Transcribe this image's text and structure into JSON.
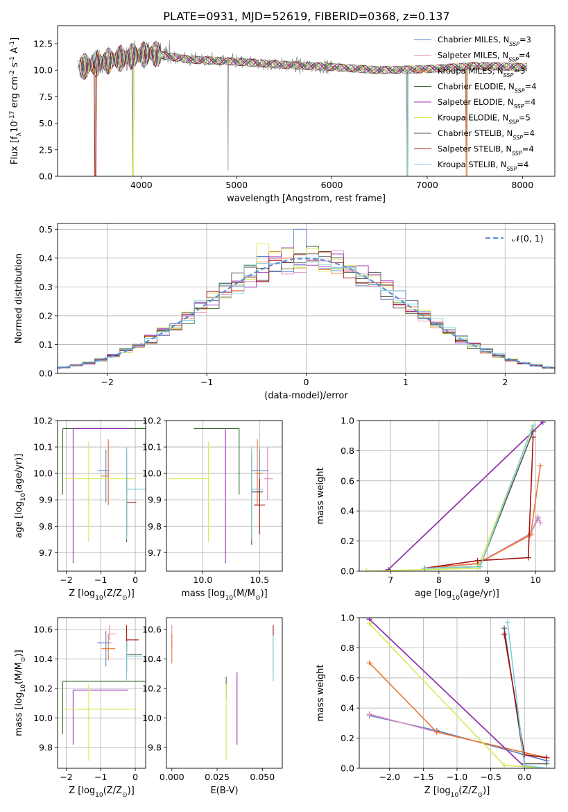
{
  "figure_title": "PLATE=0931, MJD=52619, FIBERID=0368, z=0.137",
  "colors": {
    "chabrier_miles": "#5b7fc9",
    "salpeter_miles": "#e58ac0",
    "kroupa_miles": "#e7782e",
    "chabrier_elodie": "#3a6d2d",
    "salpeter_elodie": "#9a2cb8",
    "kroupa_elodie": "#d7ea52",
    "chabrier_stelib": "#555555",
    "salpeter_stelib": "#a51313",
    "kroupa_stelib": "#7ccfd8",
    "data": "#808080",
    "normal": "#5b8fd6"
  },
  "chart_data": [
    {
      "id": "spectrum",
      "type": "line",
      "xlabel": "wavelength [Angstrom, rest frame]",
      "ylabel": "Flux [f$_\\lambda$10$^{-17}$ erg cm$^{-2}$ s$^{-1}$ A$^{-1}$]",
      "xlim": [
        3120,
        8340
      ],
      "ylim": [
        0,
        14.2
      ],
      "xticks": [
        4000,
        5000,
        6000,
        7000,
        8000
      ],
      "yticks": [
        0.0,
        2.5,
        5.0,
        7.5,
        10.0,
        12.5
      ],
      "grid": false,
      "legend_position": "right",
      "data_range": [
        3330,
        8050
      ],
      "legend": [
        {
          "key": "chabrier_miles",
          "label": "Chabrier MILES, N",
          "sub": "SSP",
          "suffix": "=3"
        },
        {
          "key": "salpeter_miles",
          "label": "Salpeter MILES, N",
          "sub": "SSP",
          "suffix": "=4"
        },
        {
          "key": "kroupa_miles",
          "label": "Kroupa MILES, N",
          "sub": "SSP",
          "suffix": "=3"
        },
        {
          "key": "chabrier_elodie",
          "label": "Chabrier ELODIE, N",
          "sub": "SSP",
          "suffix": "=4"
        },
        {
          "key": "salpeter_elodie",
          "label": "Salpeter ELODIE, N",
          "sub": "SSP",
          "suffix": "=4"
        },
        {
          "key": "kroupa_elodie",
          "label": "Kroupa ELODIE, N",
          "sub": "SSP",
          "suffix": "=5"
        },
        {
          "key": "chabrier_stelib",
          "label": "Chabrier STELIB, N",
          "sub": "SSP",
          "suffix": "=4"
        },
        {
          "key": "salpeter_stelib",
          "label": "Salpeter STELIB, N",
          "sub": "SSP",
          "suffix": "=4"
        },
        {
          "key": "kroupa_stelib",
          "label": "Kroupa STELIB, N",
          "sub": "SSP",
          "suffix": "=4"
        }
      ],
      "continuum": {
        "x": [
          3330,
          3600,
          3900,
          4100,
          4500,
          5000,
          5500,
          6000,
          6500,
          7000,
          7500,
          8050
        ],
        "y": [
          10.2,
          10.8,
          11.3,
          11.6,
          11.0,
          10.8,
          10.5,
          10.3,
          10.0,
          10.1,
          10.4,
          10.3
        ]
      },
      "drops": [
        {
          "x": 3520,
          "y": 0.0
        },
        {
          "x": 3910,
          "y": 0.0
        },
        {
          "x": 4910,
          "y": 0.5
        },
        {
          "x": 6790,
          "y": 0.0
        },
        {
          "x": 7410,
          "y": 0.0
        }
      ]
    },
    {
      "id": "residuals",
      "type": "histogram",
      "xlabel": "(data-model)/error",
      "ylabel": "Normed distribution",
      "xlim": [
        -2.5,
        2.5
      ],
      "ylim": [
        0,
        0.52
      ],
      "xticks": [
        -2,
        -1,
        0,
        1,
        2
      ],
      "yticks": [
        0.0,
        0.1,
        0.2,
        0.3,
        0.4,
        0.5
      ],
      "grid": true,
      "legend_position": "top-right",
      "legend": [
        {
          "label": "𝒩(0, 1)",
          "style": "dashed"
        }
      ],
      "bin_edges": [
        -2.5,
        2.5
      ],
      "bin_count": 40,
      "peaks": [
        {
          "x": -0.45,
          "y": 0.45
        },
        {
          "x": -0.05,
          "y": 0.5
        },
        {
          "x": 0.1,
          "y": 0.44
        },
        {
          "x": 0.95,
          "y": 0.26
        }
      ]
    },
    {
      "id": "age_vs_Z",
      "type": "errorbar",
      "xlabel": "Z [log$_{10}$(Z/Z$_\\odot$)]",
      "ylabel": "age  [log$_{10}$(age/yr)]",
      "xlim": [
        -2.25,
        0.3
      ],
      "ylim": [
        9.63,
        10.2
      ],
      "xticks": [
        -2,
        -1,
        0
      ],
      "yticks": [
        9.7,
        9.8,
        9.9,
        10.0,
        10.1,
        10.2
      ],
      "grid": true,
      "points": [
        {
          "key": "chabrier_miles",
          "x": -0.85,
          "xerr": [
            0.25,
            0.1
          ],
          "y": 10.01,
          "yerr": [
            0.12,
            0.08
          ]
        },
        {
          "key": "salpeter_miles",
          "x": -0.78,
          "xerr": [
            0.0,
            0.0
          ],
          "y": 9.97,
          "yerr": [
            0.09,
            0.15
          ]
        },
        {
          "key": "kroupa_miles",
          "x": -0.78,
          "xerr": [
            0.2,
            0.0
          ],
          "y": 9.99,
          "yerr": [
            0.11,
            0.14
          ]
        },
        {
          "key": "chabrier_elodie",
          "x": -2.1,
          "xerr": [
            0.0,
            2.4
          ],
          "y": 10.17,
          "yerr": [
            0.25,
            0.0
          ]
        },
        {
          "key": "salpeter_elodie",
          "x": -1.8,
          "xerr": [
            0.0,
            1.65
          ],
          "y": 10.17,
          "yerr": [
            0.51,
            0.0
          ]
        },
        {
          "key": "kroupa_elodie",
          "x": -1.35,
          "xerr": [
            0.7,
            1.35
          ],
          "y": 9.98,
          "yerr": [
            0.24,
            0.14
          ]
        },
        {
          "key": "chabrier_stelib",
          "x": -0.25,
          "xerr": [
            0.0,
            0.0
          ],
          "y": 9.94,
          "yerr": [
            0.2,
            0.15
          ]
        },
        {
          "key": "salpeter_stelib",
          "x": -0.25,
          "xerr": [
            0.0,
            0.28
          ],
          "y": 9.89,
          "yerr": [
            0.12,
            0.1
          ]
        },
        {
          "key": "kroupa_stelib",
          "x": -0.25,
          "xerr": [
            0.0,
            0.55
          ],
          "y": 9.94,
          "yerr": [
            0.19,
            0.16
          ]
        }
      ]
    },
    {
      "id": "age_vs_mass",
      "type": "errorbar",
      "xlabel": "mass [log$_{10}$(M/M$_\\odot$)]",
      "ylabel": "",
      "xlim": [
        9.68,
        10.7
      ],
      "ylim": [
        9.63,
        10.2
      ],
      "xticks": [
        10.0,
        10.5
      ],
      "yticks": [
        9.7,
        9.8,
        9.9,
        10.0,
        10.1,
        10.2
      ],
      "grid": true,
      "points": [
        {
          "key": "chabrier_miles",
          "x": 10.5,
          "xerr": [
            0.07,
            0.08
          ],
          "y": 10.01,
          "yerr": [
            0.12,
            0.08
          ]
        },
        {
          "key": "salpeter_miles",
          "x": 10.57,
          "xerr": [
            0.03,
            0.05
          ],
          "y": 9.98,
          "yerr": [
            0.08,
            0.12
          ]
        },
        {
          "key": "kroupa_miles",
          "x": 10.48,
          "xerr": [
            0.02,
            0.05
          ],
          "y": 10.0,
          "yerr": [
            0.12,
            0.13
          ]
        },
        {
          "key": "chabrier_elodie",
          "x": 10.32,
          "xerr": [
            0.4,
            0.0
          ],
          "y": 10.17,
          "yerr": [
            0.25,
            0.0
          ]
        },
        {
          "key": "salpeter_elodie",
          "x": 10.2,
          "xerr": [
            0.0,
            0.0
          ],
          "y": 10.17,
          "yerr": [
            0.51,
            0.0
          ]
        },
        {
          "key": "kroupa_elodie",
          "x": 10.05,
          "xerr": [
            0.35,
            0.0
          ],
          "y": 9.98,
          "yerr": [
            0.24,
            0.14
          ]
        },
        {
          "key": "chabrier_stelib",
          "x": 10.43,
          "xerr": [
            0.0,
            0.1
          ],
          "y": 9.93,
          "yerr": [
            0.2,
            0.15
          ]
        },
        {
          "key": "salpeter_stelib",
          "x": 10.5,
          "xerr": [
            0.05,
            0.05
          ],
          "y": 9.88,
          "yerr": [
            0.11,
            0.1
          ]
        },
        {
          "key": "kroupa_stelib",
          "x": 10.43,
          "xerr": [
            0.0,
            0.1
          ],
          "y": 9.94,
          "yerr": [
            0.19,
            0.16
          ]
        }
      ]
    },
    {
      "id": "weight_vs_age",
      "type": "line",
      "xlabel": "age  [log$_{10}$(age/yr)]",
      "ylabel": "mass weight",
      "xlim": [
        6.35,
        10.4
      ],
      "ylim": [
        0,
        1.0
      ],
      "xticks": [
        7,
        8,
        9,
        10
      ],
      "yticks": [
        0.0,
        0.2,
        0.4,
        0.6,
        0.8,
        1.0
      ],
      "grid": true,
      "series": [
        {
          "key": "chabrier_miles",
          "x": [
            7.7,
            8.8,
            9.9,
            10.05
          ],
          "y": [
            0.02,
            0.05,
            0.25,
            0.35
          ]
        },
        {
          "key": "salpeter_miles",
          "x": [
            7.7,
            8.8,
            9.9,
            10.05,
            10.1
          ],
          "y": [
            0.02,
            0.05,
            0.25,
            0.36,
            0.32
          ]
        },
        {
          "key": "kroupa_miles",
          "x": [
            7.7,
            8.8,
            9.9,
            10.1
          ],
          "y": [
            0.02,
            0.05,
            0.24,
            0.7
          ]
        },
        {
          "key": "chabrier_elodie",
          "x": [
            6.95,
            10.15
          ],
          "y": [
            0.01,
            0.99
          ]
        },
        {
          "key": "salpeter_elodie",
          "x": [
            6.95,
            10.15
          ],
          "y": [
            0.01,
            0.99
          ]
        },
        {
          "key": "kroupa_elodie",
          "x": [
            6.5,
            8.8,
            9.95
          ],
          "y": [
            0.0,
            0.02,
            0.96
          ]
        },
        {
          "key": "chabrier_stelib",
          "x": [
            7.7,
            8.85,
            9.95
          ],
          "y": [
            0.02,
            0.03,
            0.93
          ]
        },
        {
          "key": "salpeter_stelib",
          "x": [
            7.7,
            8.8,
            9.85,
            9.95
          ],
          "y": [
            0.02,
            0.07,
            0.09,
            0.89
          ]
        },
        {
          "key": "kroupa_stelib",
          "x": [
            7.7,
            8.85,
            9.95
          ],
          "y": [
            0.02,
            0.03,
            0.97
          ]
        }
      ]
    },
    {
      "id": "mass_vs_Z",
      "type": "errorbar",
      "xlabel": "Z [log$_{10}$(Z/Z$_\\odot$)]",
      "ylabel": "mass [log$_{10}$(M/M$_\\odot$)]",
      "xlim": [
        -2.25,
        0.3
      ],
      "ylim": [
        9.66,
        10.68
      ],
      "xticks": [
        -2,
        -1,
        0
      ],
      "yticks": [
        9.8,
        10.0,
        10.2,
        10.4,
        10.6
      ],
      "grid": true,
      "points": [
        {
          "key": "chabrier_miles",
          "x": -0.85,
          "xerr": [
            0.25,
            0.15
          ],
          "y": 10.51,
          "yerr": [
            0.16,
            0.08
          ]
        },
        {
          "key": "salpeter_miles",
          "x": -0.75,
          "xerr": [
            0.0,
            0.2
          ],
          "y": 10.57,
          "yerr": [
            0.04,
            0.06
          ]
        },
        {
          "key": "kroupa_miles",
          "x": -0.78,
          "xerr": [
            0.2,
            0.2
          ],
          "y": 10.47,
          "yerr": [
            0.08,
            0.1
          ]
        },
        {
          "key": "chabrier_elodie",
          "x": -2.1,
          "xerr": [
            0.0,
            2.4
          ],
          "y": 10.25,
          "yerr": [
            0.36,
            0.0
          ]
        },
        {
          "key": "salpeter_elodie",
          "x": -1.8,
          "xerr": [
            0.0,
            1.6
          ],
          "y": 10.19,
          "yerr": [
            0.37,
            0.0
          ]
        },
        {
          "key": "kroupa_elodie",
          "x": -1.35,
          "xerr": [
            0.7,
            1.4
          ],
          "y": 10.06,
          "yerr": [
            0.35,
            0.17
          ]
        },
        {
          "key": "chabrier_stelib",
          "x": -0.25,
          "xerr": [
            0.0,
            0.45
          ],
          "y": 10.43,
          "yerr": [
            0.12,
            0.1
          ]
        },
        {
          "key": "salpeter_stelib",
          "x": -0.25,
          "xerr": [
            0.0,
            0.35
          ],
          "y": 10.53,
          "yerr": [
            0.08,
            0.1
          ]
        },
        {
          "key": "kroupa_stelib",
          "x": -0.25,
          "xerr": [
            0.0,
            0.45
          ],
          "y": 10.42,
          "yerr": [
            0.17,
            0.1
          ]
        }
      ]
    },
    {
      "id": "mass_vs_EBV",
      "type": "errorbar",
      "xlabel": "E(B-V)",
      "ylabel": "",
      "xlim": [
        -0.003,
        0.061
      ],
      "ylim": [
        9.66,
        10.68
      ],
      "xticks": [
        0.0,
        0.025,
        0.05
      ],
      "yticks": [
        9.8,
        10.0,
        10.2,
        10.4,
        10.6
      ],
      "grid": false,
      "points": [
        {
          "key": "salpeter_miles",
          "x": 0.0,
          "y": 10.57,
          "yerr": [
            0.1,
            0.06
          ]
        },
        {
          "key": "kroupa_miles",
          "x": 0.0,
          "y": 10.47,
          "yerr": [
            0.1,
            0.1
          ]
        },
        {
          "key": "chabrier_elodie",
          "x": 0.03,
          "y": 10.22,
          "yerr": [
            0.1,
            0.06
          ]
        },
        {
          "key": "kroupa_elodie",
          "x": 0.03,
          "y": 10.06,
          "yerr": [
            0.35,
            0.17
          ]
        },
        {
          "key": "salpeter_elodie",
          "x": 0.036,
          "y": 10.19,
          "yerr": [
            0.37,
            0.12
          ]
        },
        {
          "key": "salpeter_stelib",
          "x": 0.056,
          "y": 10.53,
          "yerr": [
            0.08,
            0.1
          ]
        },
        {
          "key": "chabrier_stelib",
          "x": 0.056,
          "y": 10.43,
          "yerr": [
            0.12,
            0.1
          ]
        },
        {
          "key": "kroupa_stelib",
          "x": 0.056,
          "y": 10.42,
          "yerr": [
            0.17,
            0.14
          ]
        }
      ]
    },
    {
      "id": "weight_vs_Z",
      "type": "line",
      "xlabel": "Z [log$_{10}$(Z/Z$_\\odot$)]",
      "ylabel": "mass weight",
      "xlim": [
        -2.45,
        0.45
      ],
      "ylim": [
        0,
        1.0
      ],
      "xticks": [
        -2.0,
        -1.5,
        -1.0,
        -0.5,
        0.0
      ],
      "yticks": [
        0.0,
        0.2,
        0.4,
        0.6,
        0.8,
        1.0
      ],
      "grid": true,
      "series": [
        {
          "key": "chabrier_miles",
          "x": [
            -2.3,
            -1.3,
            0.33
          ],
          "y": [
            0.35,
            0.25,
            0.05
          ]
        },
        {
          "key": "salpeter_miles",
          "x": [
            -2.3,
            -1.3,
            0.33
          ],
          "y": [
            0.36,
            0.24,
            0.07
          ]
        },
        {
          "key": "kroupa_miles",
          "x": [
            -2.3,
            -1.3,
            0.33
          ],
          "y": [
            0.7,
            0.24,
            0.07
          ]
        },
        {
          "key": "chabrier_elodie",
          "x": [
            -2.3,
            0.0,
            0.33
          ],
          "y": [
            0.99,
            0.01,
            0.0
          ]
        },
        {
          "key": "salpeter_elodie",
          "x": [
            -2.3,
            0.0,
            0.33
          ],
          "y": [
            0.99,
            0.01,
            0.0
          ]
        },
        {
          "key": "kroupa_elodie",
          "x": [
            -2.3,
            -0.3,
            0.33
          ],
          "y": [
            0.96,
            0.02,
            0.0
          ]
        },
        {
          "key": "chabrier_stelib",
          "x": [
            -0.3,
            0.0,
            0.33
          ],
          "y": [
            0.93,
            0.03,
            0.03
          ]
        },
        {
          "key": "salpeter_stelib",
          "x": [
            -0.3,
            0.0,
            0.33
          ],
          "y": [
            0.89,
            0.09,
            0.07
          ]
        },
        {
          "key": "kroupa_stelib",
          "x": [
            -0.25,
            0.0,
            0.33
          ],
          "y": [
            0.97,
            0.02,
            0.0
          ]
        }
      ]
    }
  ]
}
